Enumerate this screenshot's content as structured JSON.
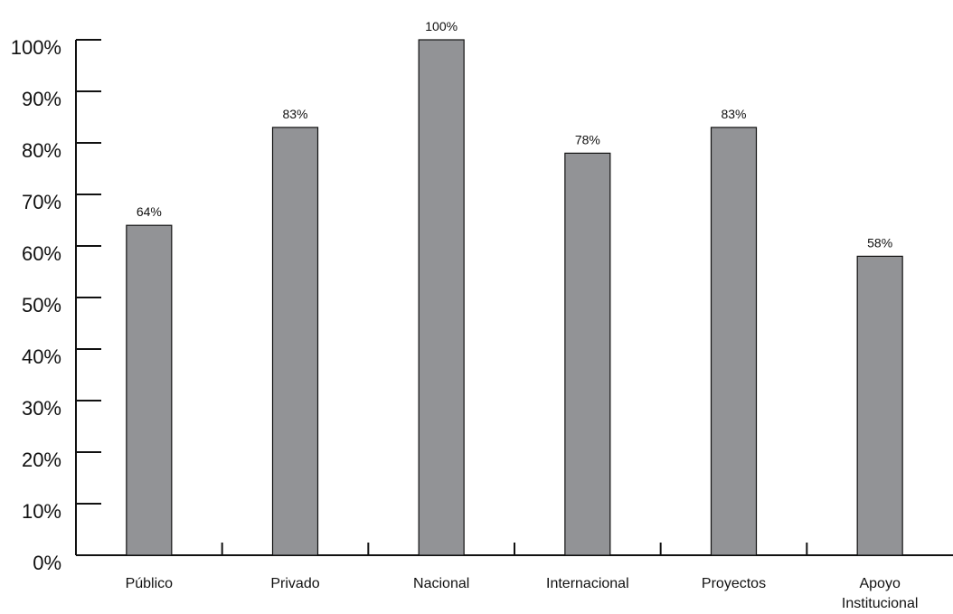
{
  "chart_data": {
    "type": "bar",
    "categories": [
      "Público",
      "Privado",
      "Nacional",
      "Internacional",
      "Proyectos",
      "Apoyo\nInstitucional"
    ],
    "values": [
      64,
      83,
      100,
      78,
      83,
      58
    ],
    "data_labels": [
      "64%",
      "83%",
      "100%",
      "78%",
      "83%",
      "58%"
    ],
    "ylim": [
      0,
      100
    ],
    "y_ticks": [
      0,
      10,
      20,
      30,
      40,
      50,
      60,
      70,
      80,
      90,
      100
    ],
    "y_tick_labels": [
      "0%",
      "10%",
      "20%",
      "30%",
      "40%",
      "50%",
      "60%",
      "70%",
      "80%",
      "90%",
      "100%"
    ],
    "bar_color": "#929396",
    "bar_edge_color": "#111111",
    "axis_color": "#111111",
    "grid": false,
    "legend": false
  }
}
